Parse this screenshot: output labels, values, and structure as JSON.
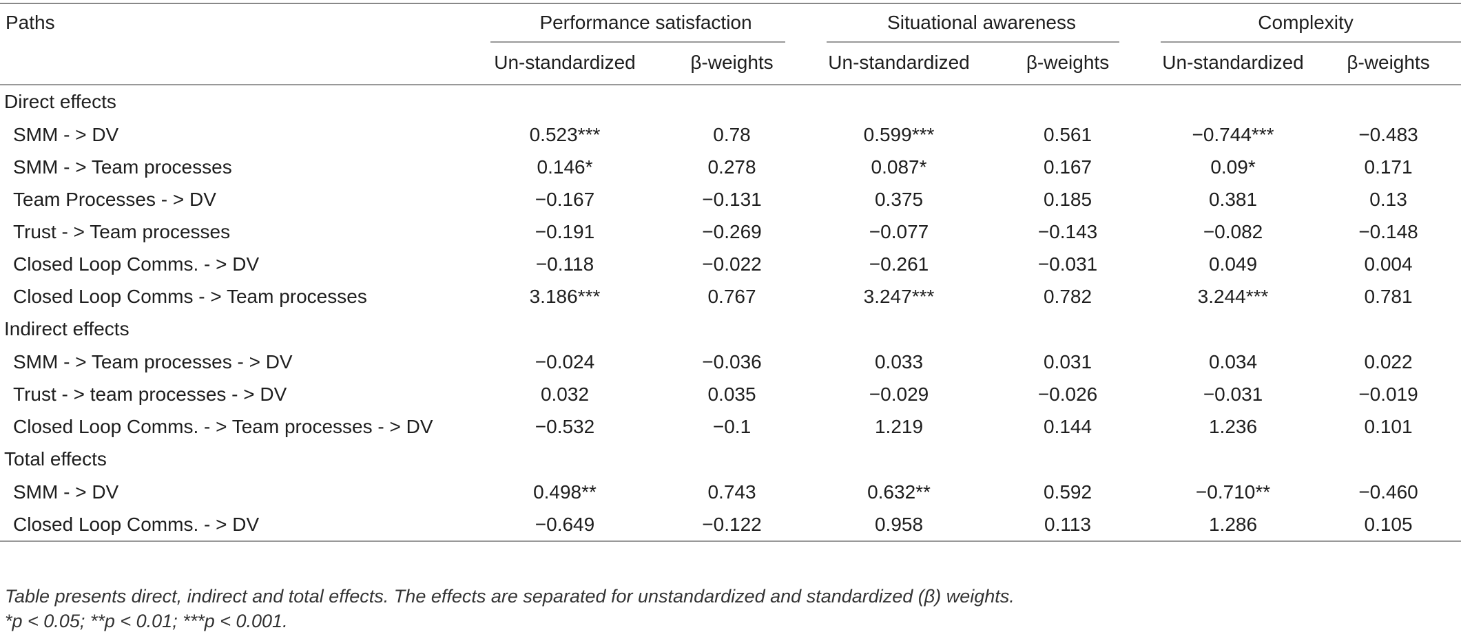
{
  "headers": {
    "paths": "Paths",
    "groups": [
      "Performance satisfaction",
      "Situational awareness",
      "Complexity"
    ],
    "sub": [
      "Un-standardized",
      "β-weights",
      "Un-standardized",
      "β-weights",
      "Un-standardized",
      "β-weights"
    ]
  },
  "sections": [
    {
      "title": "Direct effects",
      "rows": [
        {
          "label": "SMM - > DV",
          "values": [
            "0.523***",
            "0.78",
            "0.599***",
            "0.561",
            "−0.744***",
            "−0.483"
          ]
        },
        {
          "label": "SMM - > Team processes",
          "values": [
            "0.146*",
            "0.278",
            "0.087*",
            "0.167",
            "0.09*",
            "0.171"
          ]
        },
        {
          "label": "Team Processes - > DV",
          "values": [
            "−0.167",
            "−0.131",
            "0.375",
            "0.185",
            "0.381",
            "0.13"
          ]
        },
        {
          "label": "Trust - > Team processes",
          "values": [
            "−0.191",
            "−0.269",
            "−0.077",
            "−0.143",
            "−0.082",
            "−0.148"
          ]
        },
        {
          "label": "Closed Loop Comms. - > DV",
          "values": [
            "−0.118",
            "−0.022",
            "−0.261",
            "−0.031",
            "0.049",
            "0.004"
          ]
        },
        {
          "label": "Closed Loop Comms - > Team processes",
          "values": [
            "3.186***",
            "0.767",
            "3.247***",
            "0.782",
            "3.244***",
            "0.781"
          ]
        }
      ]
    },
    {
      "title": "Indirect effects",
      "rows": [
        {
          "label": "SMM - > Team processes - > DV",
          "values": [
            "−0.024",
            "−0.036",
            "0.033",
            "0.031",
            "0.034",
            "0.022"
          ]
        },
        {
          "label": "Trust - > team processes - > DV",
          "values": [
            "0.032",
            "0.035",
            "−0.029",
            "−0.026",
            "−0.031",
            "−0.019"
          ]
        },
        {
          "label": "Closed Loop Comms. - > Team processes - > DV",
          "values": [
            "−0.532",
            "−0.1",
            "1.219",
            "0.144",
            "1.236",
            "0.101"
          ]
        }
      ]
    },
    {
      "title": "Total effects",
      "rows": [
        {
          "label": "SMM - > DV",
          "values": [
            "0.498**",
            "0.743",
            "0.632**",
            "0.592",
            "−0.710**",
            "−0.460"
          ]
        },
        {
          "label": "Closed Loop Comms. - > DV",
          "values": [
            "−0.649",
            "−0.122",
            "0.958",
            "0.113",
            "1.286",
            "0.105"
          ]
        }
      ]
    }
  ],
  "notes": {
    "line1": "Table presents direct, indirect and total effects. The effects are separated for unstandardized and standardized (β) weights.",
    "line2": "*p < 0.05; **p < 0.01; ***p < 0.001."
  }
}
